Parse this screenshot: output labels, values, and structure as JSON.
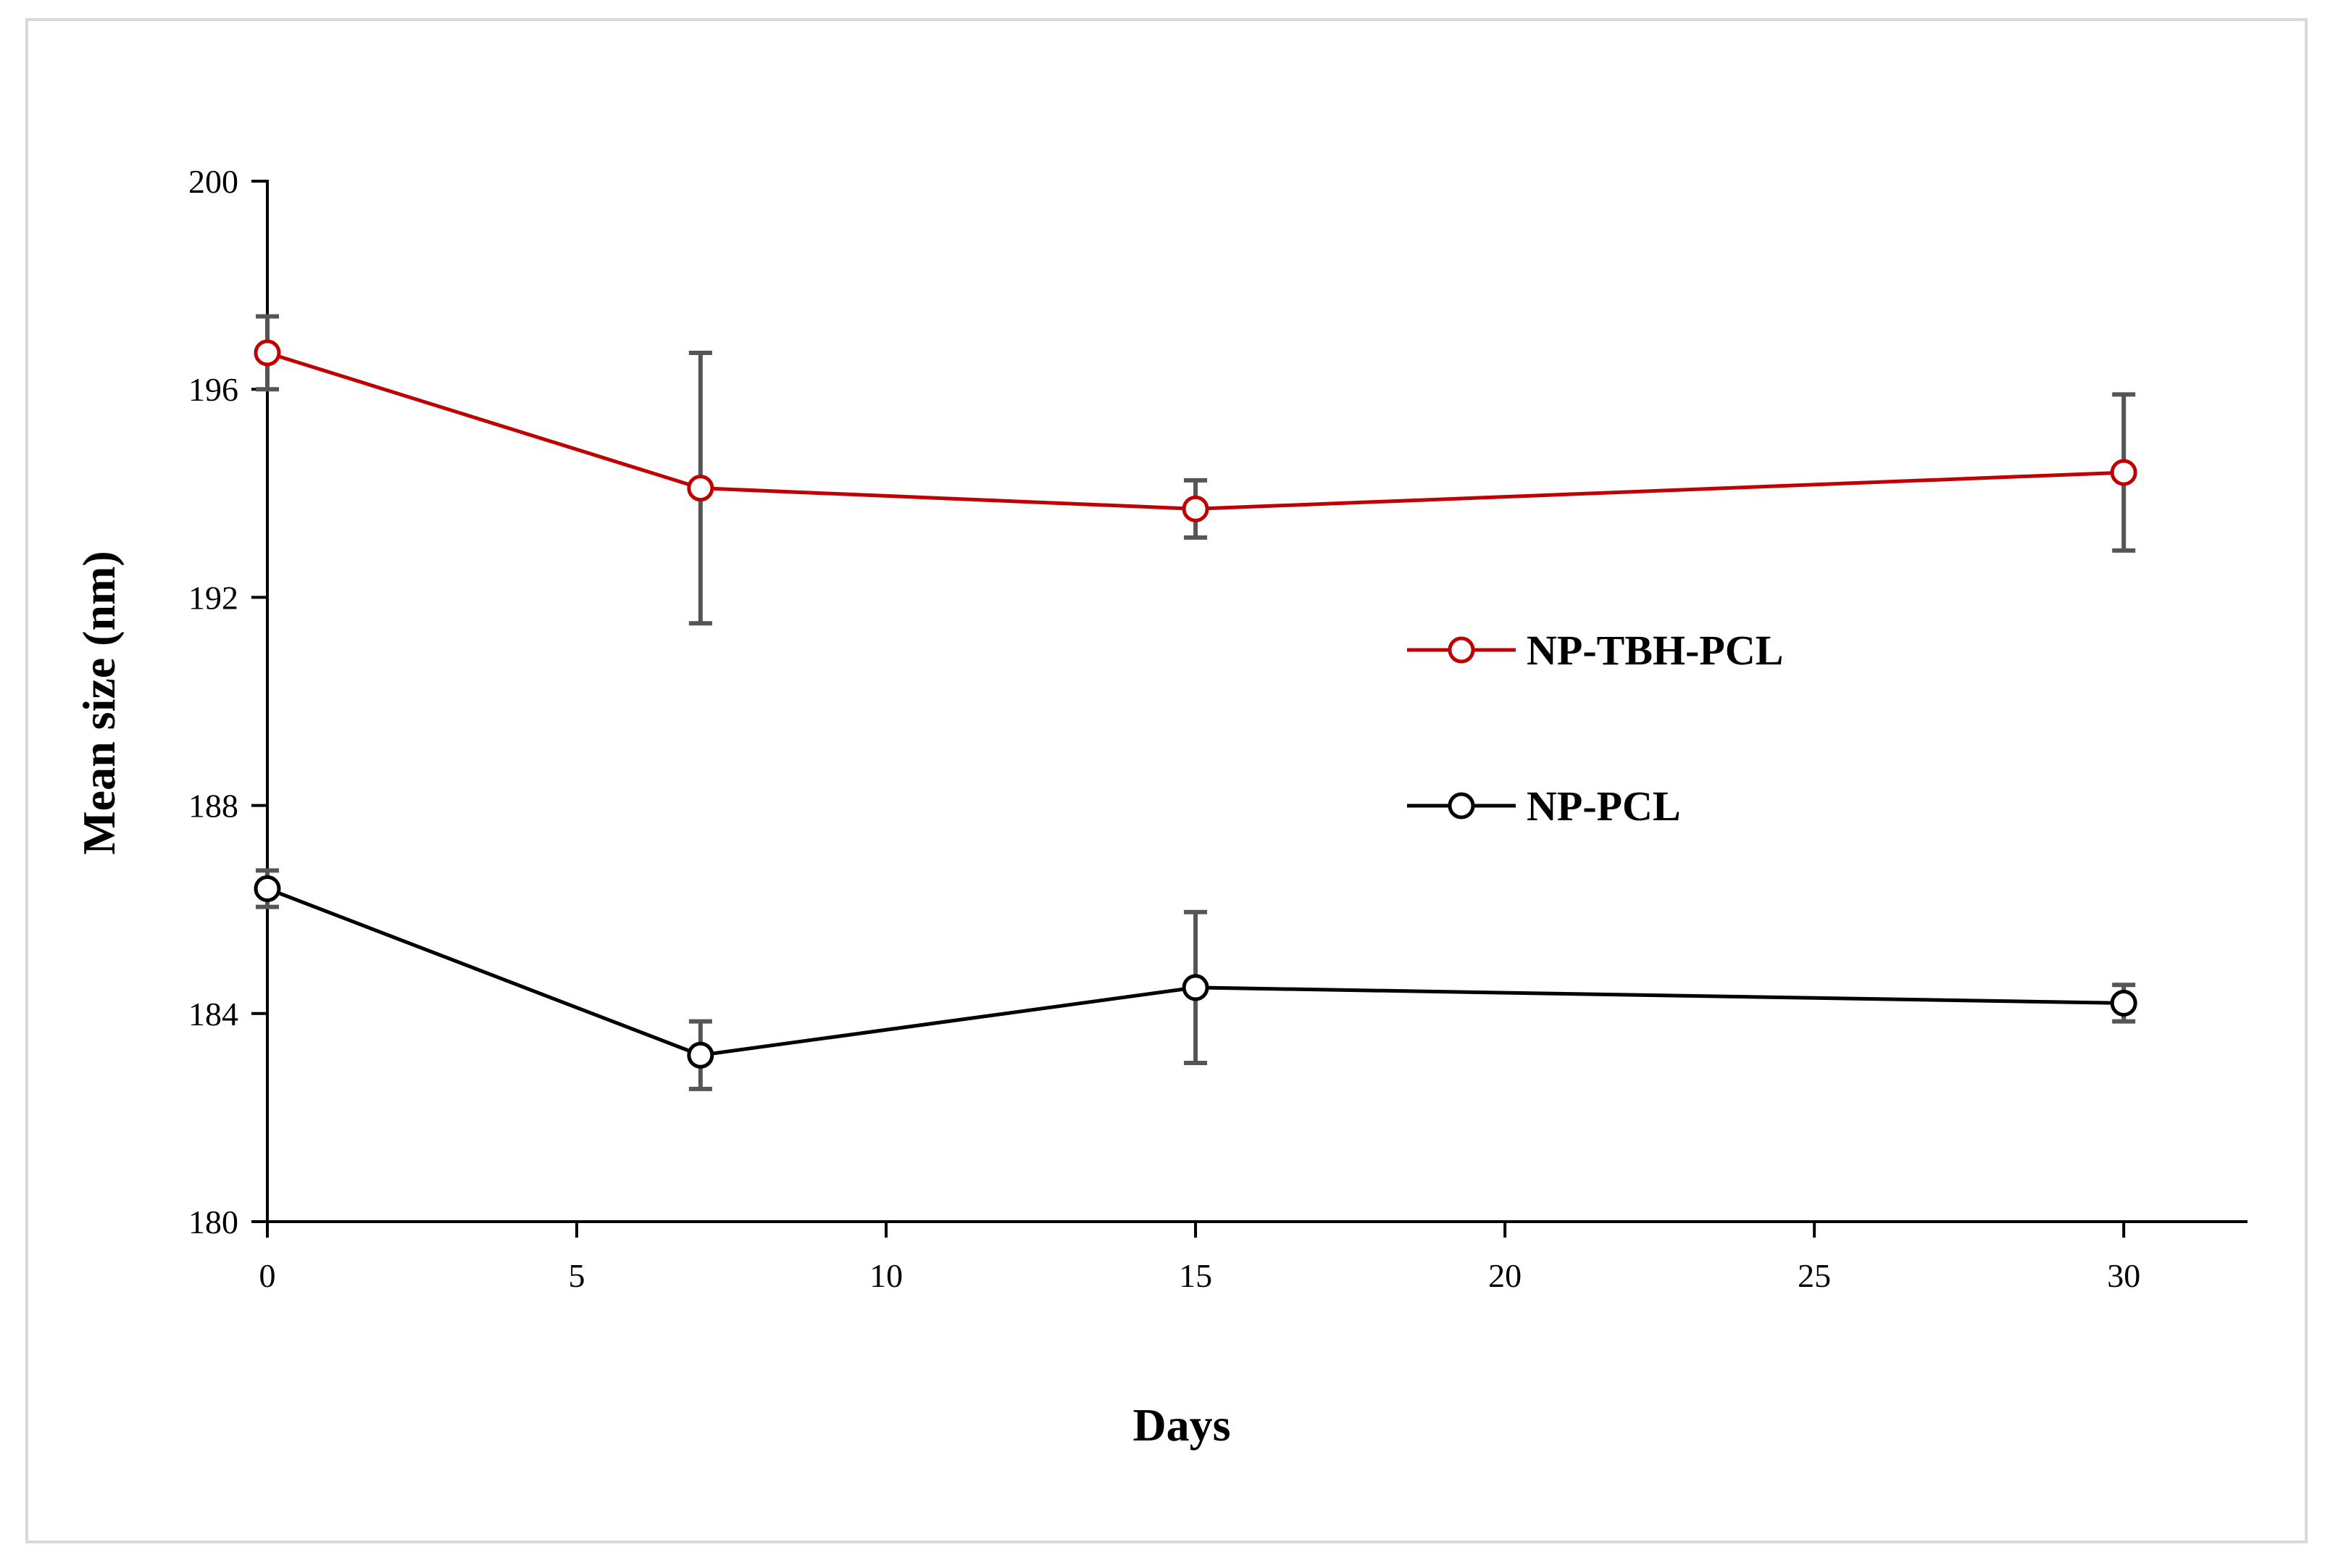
{
  "chart_data": {
    "type": "line",
    "title": "",
    "xlabel": "Days",
    "ylabel": "Mean size (nm)",
    "xlim": [
      0,
      32
    ],
    "ylim": [
      180,
      200
    ],
    "x_ticks": [
      0,
      5,
      10,
      15,
      20,
      25,
      30
    ],
    "y_ticks": [
      180,
      184,
      188,
      192,
      196,
      200
    ],
    "grid": false,
    "legend_position": "right-center",
    "series": [
      {
        "name": "NP-TBH-PCL",
        "color": "#c00000",
        "marker": "open-circle",
        "x": [
          0,
          7,
          15,
          30
        ],
        "values": [
          196.7,
          194.1,
          193.7,
          194.4
        ],
        "error": [
          0.7,
          2.6,
          0.55,
          1.5
        ]
      },
      {
        "name": "NP-PCL",
        "color": "#000000",
        "marker": "open-circle",
        "x": [
          0,
          7,
          15,
          30
        ],
        "values": [
          186.4,
          183.2,
          184.5,
          184.2
        ],
        "error": [
          0.35,
          0.65,
          1.45,
          0.35
        ]
      }
    ],
    "error_bar_color": "#555555"
  }
}
